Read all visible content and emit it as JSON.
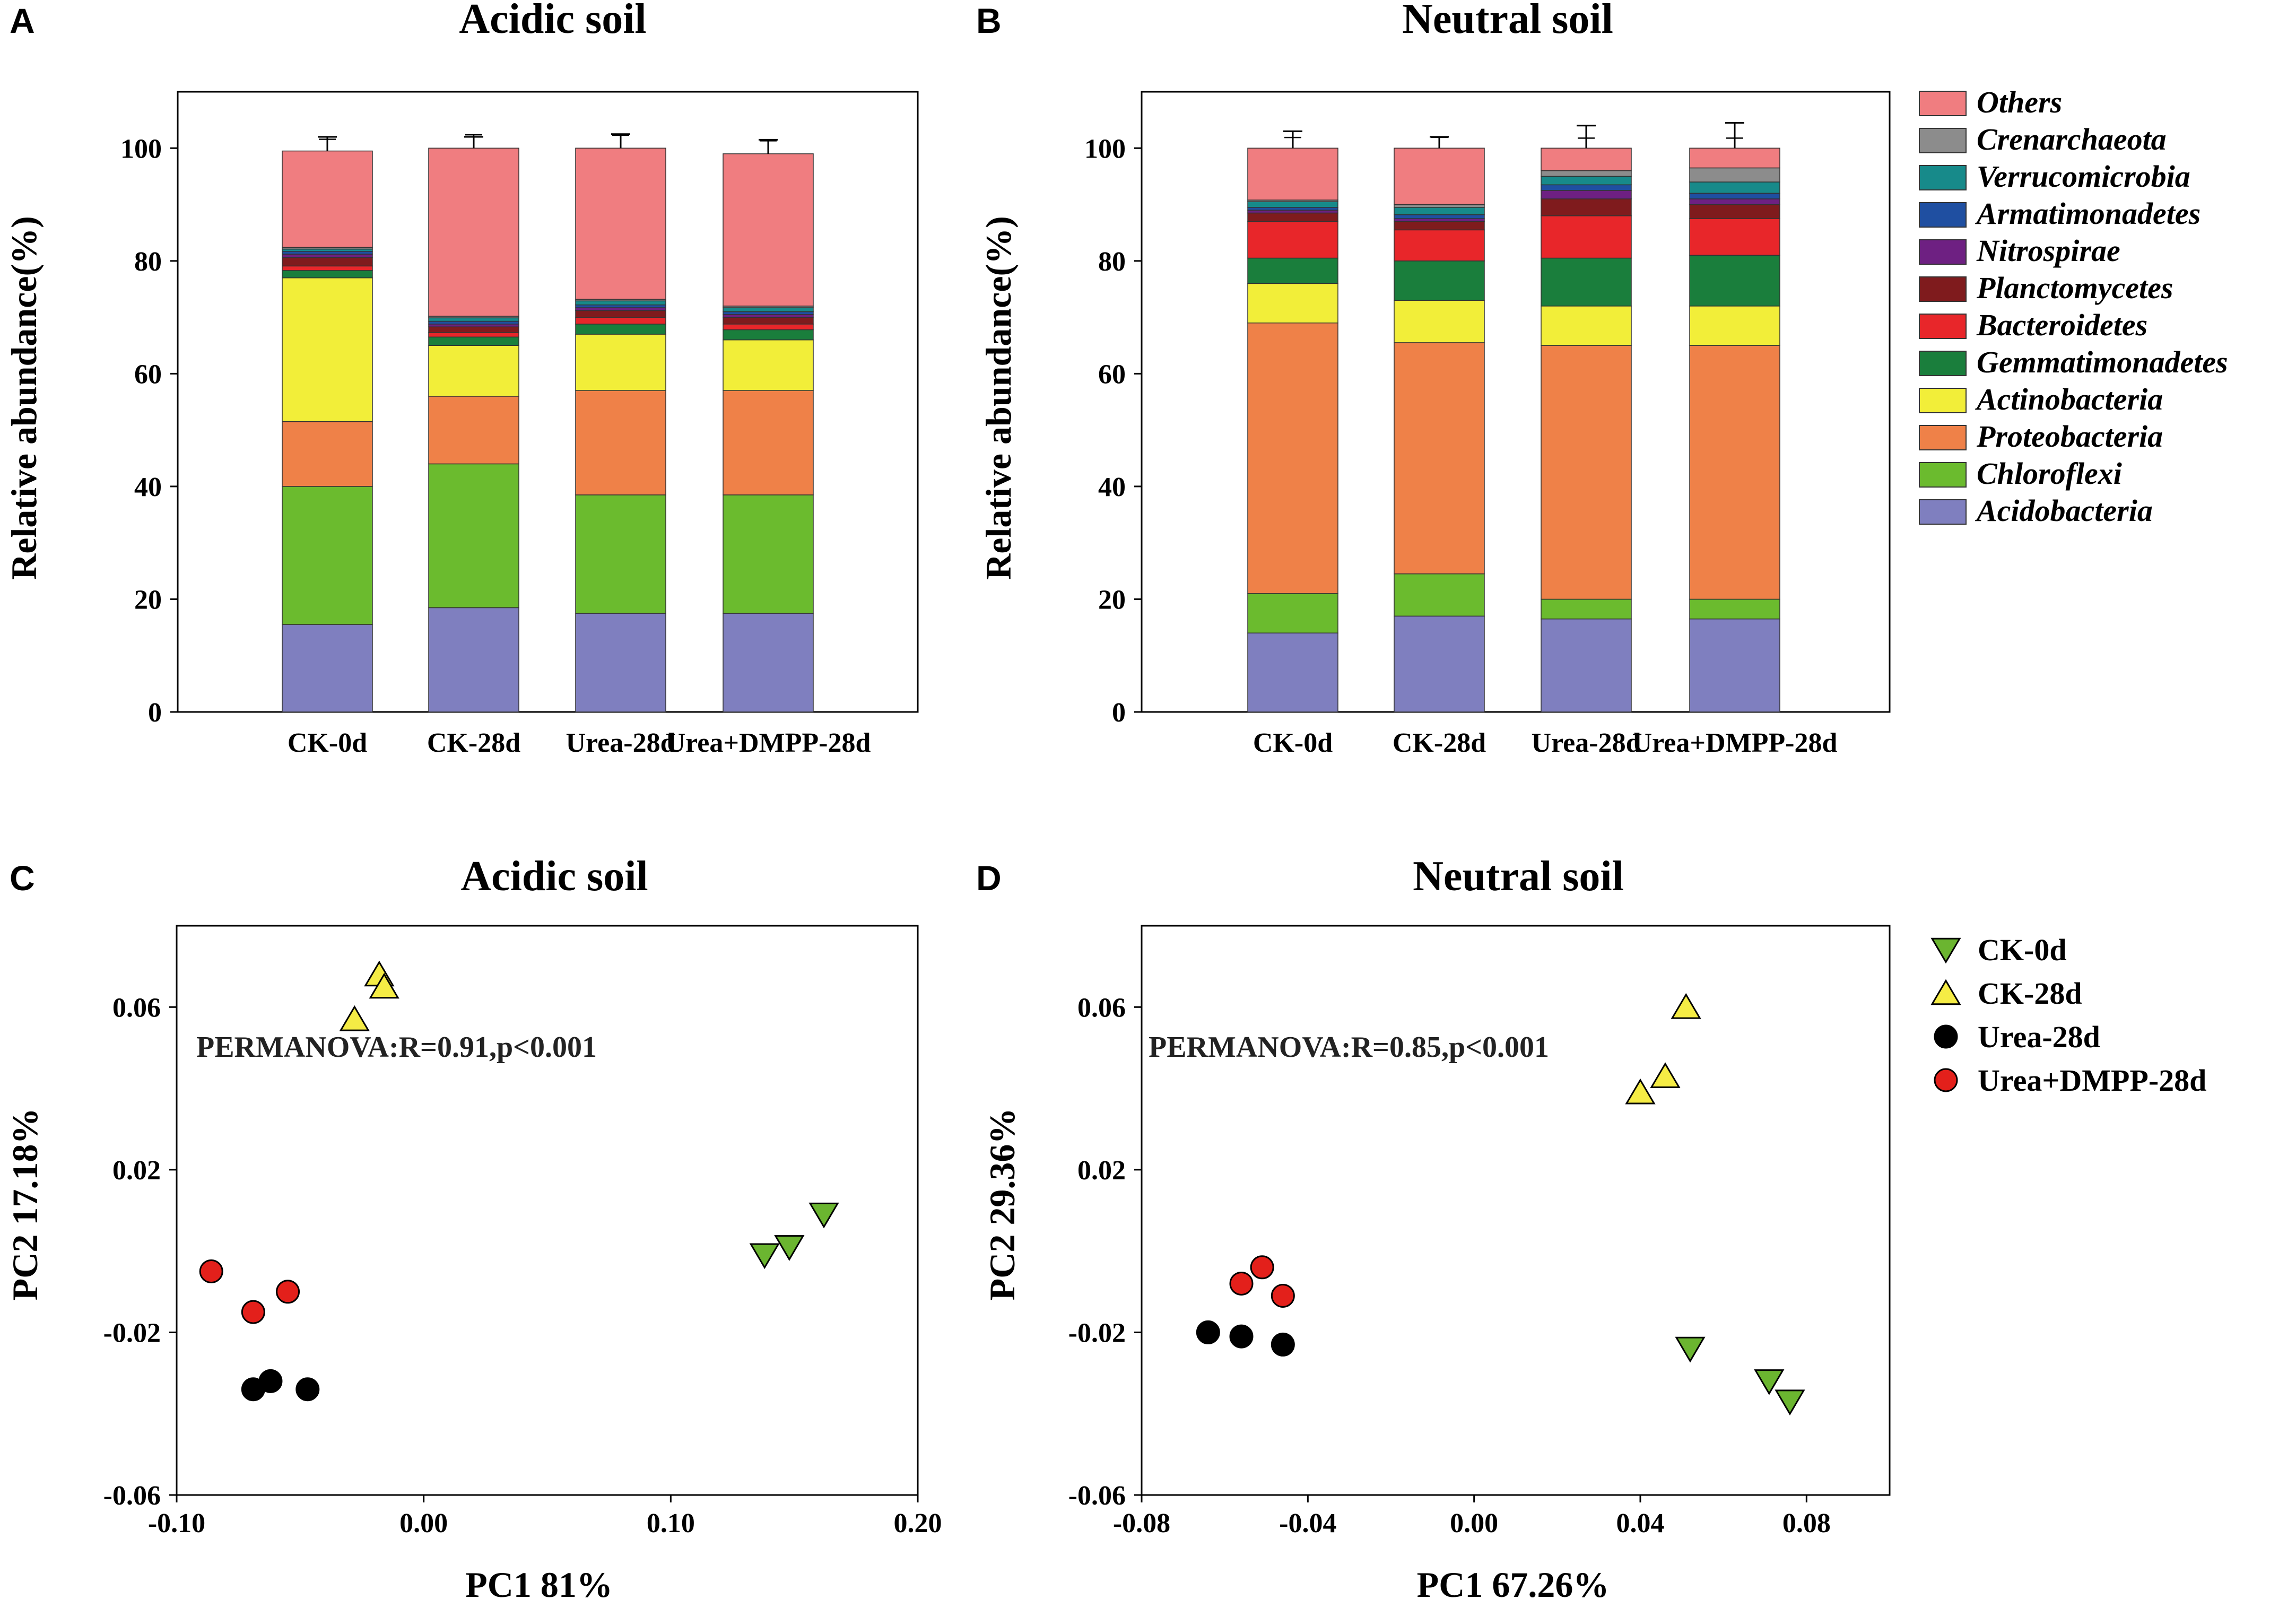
{
  "panels": {
    "A": {
      "letter": "A",
      "title": "Acidic soil",
      "ylabel": "Relative abundance(%)"
    },
    "B": {
      "letter": "B",
      "title": "Neutral soil",
      "ylabel": "Relative abundance(%)"
    },
    "C": {
      "letter": "C",
      "title": "Acidic soil",
      "xlabel": "PC1 81%",
      "ylabel": "PC2 17.18%",
      "annotation": "PERMANOVA:R=0.91,p<0.001"
    },
    "D": {
      "letter": "D",
      "title": "Neutral soil",
      "xlabel": "PC1 67.26%",
      "ylabel": "PC2 29.36%",
      "annotation": "PERMANOVA:R=0.85,p<0.001"
    }
  },
  "colors": {
    "Acidobacteria": "#7f7fbf",
    "Chloroflexi": "#6bbb2e",
    "Proteobacteria": "#ef8148",
    "Actinobacteria": "#f2ee39",
    "Gemmatimonadetes": "#1a7e3c",
    "Bacteroidetes": "#e8262a",
    "Planctomycetes": "#7f1b1d",
    "Nitrospirae": "#6e2082",
    "Armatimonadetes": "#1f4fa1",
    "Verrucomicrobia": "#178a8a",
    "Crenarchaeota": "#8c8c8c",
    "Others": "#f07d80",
    "CK-0d": "#6bb530",
    "CK-28d": "#f5ec45",
    "Urea-28d": "#000000",
    "Urea+DMPP-28d": "#e3201b"
  },
  "legend_taxa": [
    "Others",
    "Crenarchaeota",
    "Verrucomicrobia",
    "Armatimonadetes",
    "Nitrospirae",
    "Planctomycetes",
    "Bacteroidetes",
    "Gemmatimonadetes",
    "Actinobacteria",
    "Proteobacteria",
    "Chloroflexi",
    "Acidobacteria"
  ],
  "legend_groups": [
    "CK-0d",
    "CK-28d",
    "Urea-28d",
    "Urea+DMPP-28d"
  ],
  "chart_data": [
    {
      "panel": "A",
      "type": "bar",
      "stacked": true,
      "title": "Acidic soil",
      "xlabel": "",
      "ylabel": "Relative abundance(%)",
      "ylim": [
        0,
        110
      ],
      "yticks": [
        0,
        20,
        40,
        60,
        80,
        100
      ],
      "categories": [
        "CK-0d",
        "CK-28d",
        "Urea-28d",
        "Urea+DMPP-28d"
      ],
      "series": [
        {
          "name": "Acidobacteria",
          "values": [
            15.5,
            18.5,
            17.5,
            17.5
          ]
        },
        {
          "name": "Chloroflexi",
          "values": [
            24.5,
            25.5,
            21.0,
            21.0
          ]
        },
        {
          "name": "Proteobacteria",
          "values": [
            11.5,
            12.0,
            18.5,
            18.5
          ]
        },
        {
          "name": "Actinobacteria",
          "values": [
            25.5,
            9.0,
            10.0,
            9.0
          ]
        },
        {
          "name": "Gemmatimonadetes",
          "values": [
            1.3,
            1.5,
            1.8,
            1.8
          ]
        },
        {
          "name": "Bacteroidetes",
          "values": [
            0.8,
            0.8,
            1.2,
            1.0
          ]
        },
        {
          "name": "Planctomycetes",
          "values": [
            1.5,
            1.0,
            1.2,
            1.2
          ]
        },
        {
          "name": "Nitrospirae",
          "values": [
            0.6,
            0.5,
            0.5,
            0.5
          ]
        },
        {
          "name": "Armatimonadetes",
          "values": [
            0.5,
            0.5,
            0.5,
            0.5
          ]
        },
        {
          "name": "Verrucomicrobia",
          "values": [
            0.4,
            0.6,
            0.7,
            0.7
          ]
        },
        {
          "name": "Crenarchaeota",
          "values": [
            0.3,
            0.3,
            0.3,
            0.3
          ]
        },
        {
          "name": "Others",
          "values": [
            17.1,
            29.8,
            26.8,
            27.0
          ]
        }
      ],
      "total_error": [
        2.5,
        2.0,
        2.5,
        2.5
      ]
    },
    {
      "panel": "B",
      "type": "bar",
      "stacked": true,
      "title": "Neutral soil",
      "xlabel": "",
      "ylabel": "Relative abundance(%)",
      "ylim": [
        0,
        110
      ],
      "yticks": [
        0,
        20,
        40,
        60,
        80,
        100
      ],
      "categories": [
        "CK-0d",
        "CK-28d",
        "Urea-28d",
        "Urea+DMPP-28d"
      ],
      "series": [
        {
          "name": "Acidobacteria",
          "values": [
            14.0,
            17.0,
            16.5,
            16.5
          ]
        },
        {
          "name": "Chloroflexi",
          "values": [
            7.0,
            7.5,
            3.5,
            3.5
          ]
        },
        {
          "name": "Proteobacteria",
          "values": [
            48.0,
            41.0,
            45.0,
            45.0
          ]
        },
        {
          "name": "Actinobacteria",
          "values": [
            7.0,
            7.5,
            7.0,
            7.0
          ]
        },
        {
          "name": "Gemmatimonadetes",
          "values": [
            4.5,
            7.0,
            8.5,
            9.0
          ]
        },
        {
          "name": "Bacteroidetes",
          "values": [
            6.5,
            5.5,
            7.5,
            6.5
          ]
        },
        {
          "name": "Planctomycetes",
          "values": [
            1.5,
            1.5,
            3.0,
            2.5
          ]
        },
        {
          "name": "Nitrospirae",
          "values": [
            0.5,
            0.5,
            1.5,
            1.0
          ]
        },
        {
          "name": "Armatimonadetes",
          "values": [
            0.5,
            0.7,
            1.0,
            1.0
          ]
        },
        {
          "name": "Verrucomicrobia",
          "values": [
            1.0,
            1.3,
            1.5,
            2.0
          ]
        },
        {
          "name": "Crenarchaeota",
          "values": [
            0.3,
            0.5,
            1.0,
            2.5
          ]
        },
        {
          "name": "Others",
          "values": [
            9.2,
            10.0,
            4.0,
            3.5
          ]
        }
      ],
      "total_error": [
        3.0,
        2.0,
        4.0,
        4.5
      ]
    },
    {
      "panel": "C",
      "type": "scatter",
      "title": "Acidic soil",
      "xlabel": "PC1 81%",
      "ylabel": "PC2 17.18%",
      "xlim": [
        -0.1,
        0.2
      ],
      "ylim": [
        -0.06,
        0.08
      ],
      "xticks": [
        "-0.10",
        "0.00",
        "0.10",
        "0.20"
      ],
      "yticks": [
        "-0.06",
        "-0.02",
        "0.02",
        "0.06"
      ],
      "series": [
        {
          "name": "CK-0d",
          "marker": "triangle-down",
          "x": [
            0.138,
            0.148,
            0.162
          ],
          "y": [
            -0.001,
            0.001,
            0.009
          ]
        },
        {
          "name": "CK-28d",
          "marker": "triangle-up",
          "x": [
            -0.028,
            -0.018,
            -0.016
          ],
          "y": [
            0.057,
            0.068,
            0.065
          ]
        },
        {
          "name": "Urea-28d",
          "marker": "circle",
          "x": [
            -0.069,
            -0.062,
            -0.047
          ],
          "y": [
            -0.034,
            -0.032,
            -0.034
          ]
        },
        {
          "name": "Urea+DMPP-28d",
          "marker": "circle",
          "x": [
            -0.086,
            -0.069,
            -0.055
          ],
          "y": [
            -0.005,
            -0.015,
            -0.01
          ]
        }
      ]
    },
    {
      "panel": "D",
      "type": "scatter",
      "title": "Neutral soil",
      "xlabel": "PC1 67.26%",
      "ylabel": "PC2 29.36%",
      "xlim": [
        -0.08,
        0.1
      ],
      "ylim": [
        -0.06,
        0.08
      ],
      "xticks": [
        "-0.08",
        "-0.04",
        "0.00",
        "0.04",
        "0.08"
      ],
      "yticks": [
        "-0.06",
        "-0.02",
        "0.02",
        "0.06"
      ],
      "series": [
        {
          "name": "CK-0d",
          "marker": "triangle-down",
          "x": [
            0.052,
            0.071,
            0.076
          ],
          "y": [
            -0.024,
            -0.032,
            -0.037
          ]
        },
        {
          "name": "CK-28d",
          "marker": "triangle-up",
          "x": [
            0.04,
            0.046,
            0.051
          ],
          "y": [
            0.039,
            0.043,
            0.06
          ]
        },
        {
          "name": "Urea-28d",
          "marker": "circle",
          "x": [
            -0.064,
            -0.056,
            -0.046
          ],
          "y": [
            -0.02,
            -0.021,
            -0.023
          ]
        },
        {
          "name": "Urea+DMPP-28d",
          "marker": "circle",
          "x": [
            -0.056,
            -0.051,
            -0.046
          ],
          "y": [
            -0.008,
            -0.004,
            -0.011
          ]
        }
      ]
    }
  ]
}
